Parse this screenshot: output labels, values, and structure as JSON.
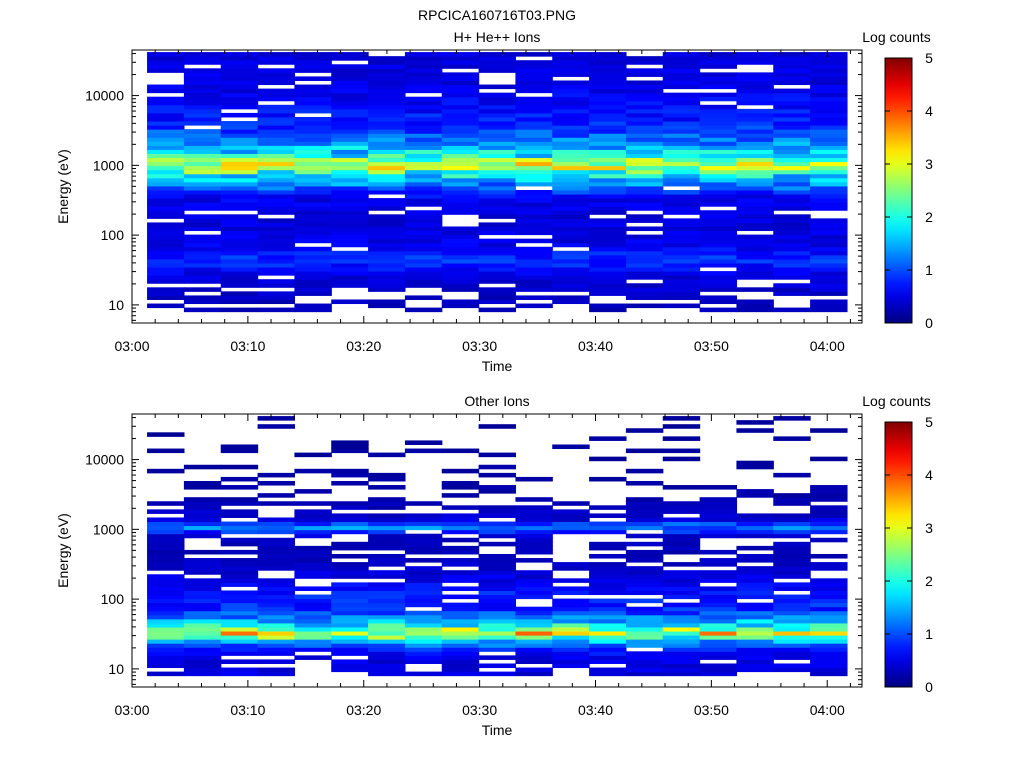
{
  "figure_title": "RPCICA160716T03.PNG",
  "chart_data": [
    {
      "type": "heatmap",
      "title": "H+ He++ Ions",
      "xlabel": "Time",
      "ylabel": "Energy (eV)",
      "colorbar_label": "Log counts",
      "x_ticks": [
        "03:00",
        "03:10",
        "03:20",
        "03:30",
        "03:40",
        "03:50",
        "04:00"
      ],
      "x_range_minutes": [
        0,
        63
      ],
      "y_scale": "log",
      "y_range": [
        5.5,
        45000
      ],
      "y_ticks": [
        10,
        100,
        1000,
        10000
      ],
      "y_tick_labels": [
        "10",
        "100",
        "1000",
        "10000"
      ],
      "colorbar_range": [
        0,
        5
      ],
      "colorbar_ticks": [
        "0",
        "1",
        "2",
        "3",
        "4",
        "5"
      ],
      "time_bins": 19,
      "profile": [
        [
          10,
          0.3,
          0.45
        ],
        [
          25,
          0.45,
          0.85
        ],
        [
          45,
          0.85,
          1.0
        ],
        [
          70,
          0.55,
          0.9
        ],
        [
          150,
          0.45,
          0.8
        ],
        [
          350,
          0.55,
          0.95
        ],
        [
          700,
          1.7,
          1.0
        ],
        [
          1000,
          2.9,
          1.0
        ],
        [
          1400,
          1.9,
          1.0
        ],
        [
          2200,
          1.25,
          1.0
        ],
        [
          4000,
          0.75,
          0.95
        ],
        [
          15000,
          0.5,
          0.85
        ],
        [
          40000,
          0.45,
          0.85
        ]
      ]
    },
    {
      "type": "heatmap",
      "title": "Other Ions",
      "xlabel": "Time",
      "ylabel": "Energy (eV)",
      "colorbar_label": "Log counts",
      "x_ticks": [
        "03:00",
        "03:10",
        "03:20",
        "03:30",
        "03:40",
        "03:50",
        "04:00"
      ],
      "x_range_minutes": [
        0,
        63
      ],
      "y_scale": "log",
      "y_range": [
        5.5,
        45000
      ],
      "y_ticks": [
        10,
        100,
        1000,
        10000
      ],
      "y_tick_labels": [
        "10",
        "100",
        "1000",
        "10000"
      ],
      "colorbar_range": [
        0,
        5
      ],
      "colorbar_ticks": [
        "0",
        "1",
        "2",
        "3",
        "4",
        "5"
      ],
      "time_bins": 19,
      "profile": [
        [
          9,
          0.45,
          0.8
        ],
        [
          15,
          0.5,
          0.8
        ],
        [
          20,
          0.8,
          1.0
        ],
        [
          25,
          1.5,
          1.0
        ],
        [
          33,
          3.1,
          1.0
        ],
        [
          45,
          1.6,
          1.0
        ],
        [
          70,
          0.8,
          0.95
        ],
        [
          130,
          0.7,
          0.85
        ],
        [
          250,
          0.4,
          0.75
        ],
        [
          500,
          0.25,
          0.5
        ],
        [
          800,
          0.35,
          0.65
        ],
        [
          1100,
          1.3,
          1.0
        ],
        [
          1400,
          0.4,
          0.8
        ],
        [
          3000,
          0.2,
          0.3
        ],
        [
          15000,
          0.15,
          0.2
        ],
        [
          40000,
          0.15,
          0.15
        ]
      ]
    }
  ]
}
